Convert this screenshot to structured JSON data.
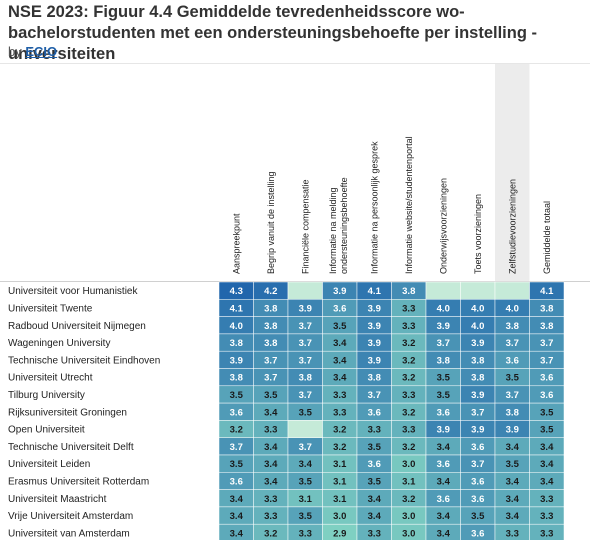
{
  "header": {
    "title": "NSE 2023: Figuur 4.4 Gemiddelde tevredenheidsscore wo-bachelorstudenten met een ondersteuningsbehoefte per instelling - universiteiten",
    "by_prefix": "by",
    "author": "ECIO"
  },
  "chart_data": {
    "type": "heatmap",
    "title": "NSE 2023: Figuur 4.4 Gemiddelde tevredenheidsscore wo-bachelorstudenten met een ondersteuningsbehoefte per instelling - universiteiten",
    "columns": [
      [
        "Aanspreekpunt"
      ],
      [
        "Begrip vanuit de instelling"
      ],
      [
        "Financiële compensatie"
      ],
      [
        "Informatie na melding",
        "ondersteuningsbehoefte"
      ],
      [
        "Informatie na persoonlijk gesprek"
      ],
      [
        "Informatie website/studentenportal"
      ],
      [
        "Onderwijsvoorzieningen"
      ],
      [
        "Toets voorzieningen"
      ],
      [
        "Zelfstudievoorzieningen"
      ],
      [
        "Gemiddelde totaal"
      ]
    ],
    "highlighted_column": 8,
    "rows": [
      "Universiteit voor Humanistiek",
      "Universiteit Twente",
      "Radboud Universiteit Nijmegen",
      "Wageningen University",
      "Technische Universiteit Eindhoven",
      "Universiteit Utrecht",
      "Tilburg University",
      "Rijksuniversiteit Groningen",
      "Open Universiteit",
      "Technische Universiteit Delft",
      "Universiteit Leiden",
      "Erasmus Universiteit Rotterdam",
      "Universiteit Maastricht",
      "Vrije Universiteit Amsterdam",
      "Universiteit van Amsterdam"
    ],
    "values": [
      [
        4.3,
        4.2,
        null,
        3.9,
        4.1,
        3.8,
        null,
        null,
        null,
        4.1
      ],
      [
        4.1,
        3.8,
        3.9,
        3.6,
        3.9,
        3.3,
        4.0,
        4.0,
        4.0,
        3.8
      ],
      [
        4.0,
        3.8,
        3.7,
        3.5,
        3.9,
        3.3,
        3.9,
        4.0,
        3.8,
        3.8
      ],
      [
        3.8,
        3.8,
        3.7,
        3.4,
        3.9,
        3.2,
        3.7,
        3.9,
        3.7,
        3.7
      ],
      [
        3.9,
        3.7,
        3.7,
        3.4,
        3.9,
        3.2,
        3.8,
        3.8,
        3.6,
        3.7
      ],
      [
        3.8,
        3.7,
        3.8,
        3.4,
        3.8,
        3.2,
        3.5,
        3.8,
        3.5,
        3.6
      ],
      [
        3.5,
        3.5,
        3.7,
        3.3,
        3.7,
        3.3,
        3.5,
        3.9,
        3.7,
        3.6
      ],
      [
        3.6,
        3.4,
        3.5,
        3.3,
        3.6,
        3.2,
        3.6,
        3.7,
        3.8,
        3.5
      ],
      [
        3.2,
        3.3,
        null,
        3.2,
        3.3,
        3.3,
        3.9,
        3.9,
        3.9,
        3.5
      ],
      [
        3.7,
        3.4,
        3.7,
        3.2,
        3.5,
        3.2,
        3.4,
        3.6,
        3.4,
        3.4
      ],
      [
        3.5,
        3.4,
        3.4,
        3.1,
        3.6,
        3.0,
        3.6,
        3.7,
        3.5,
        3.4
      ],
      [
        3.6,
        3.4,
        3.5,
        3.1,
        3.5,
        3.1,
        3.4,
        3.6,
        3.4,
        3.4
      ],
      [
        3.4,
        3.3,
        3.1,
        3.1,
        3.4,
        3.2,
        3.6,
        3.6,
        3.4,
        3.3
      ],
      [
        3.4,
        3.3,
        3.5,
        3.0,
        3.4,
        3.0,
        3.4,
        3.5,
        3.4,
        3.3
      ],
      [
        3.4,
        3.2,
        3.3,
        2.9,
        3.3,
        3.0,
        3.4,
        3.6,
        3.3,
        3.3
      ]
    ],
    "empty_cell_color": "#c5ead8",
    "color_scale": {
      "low": "#7fd0c2",
      "high": "#2166ac"
    }
  }
}
